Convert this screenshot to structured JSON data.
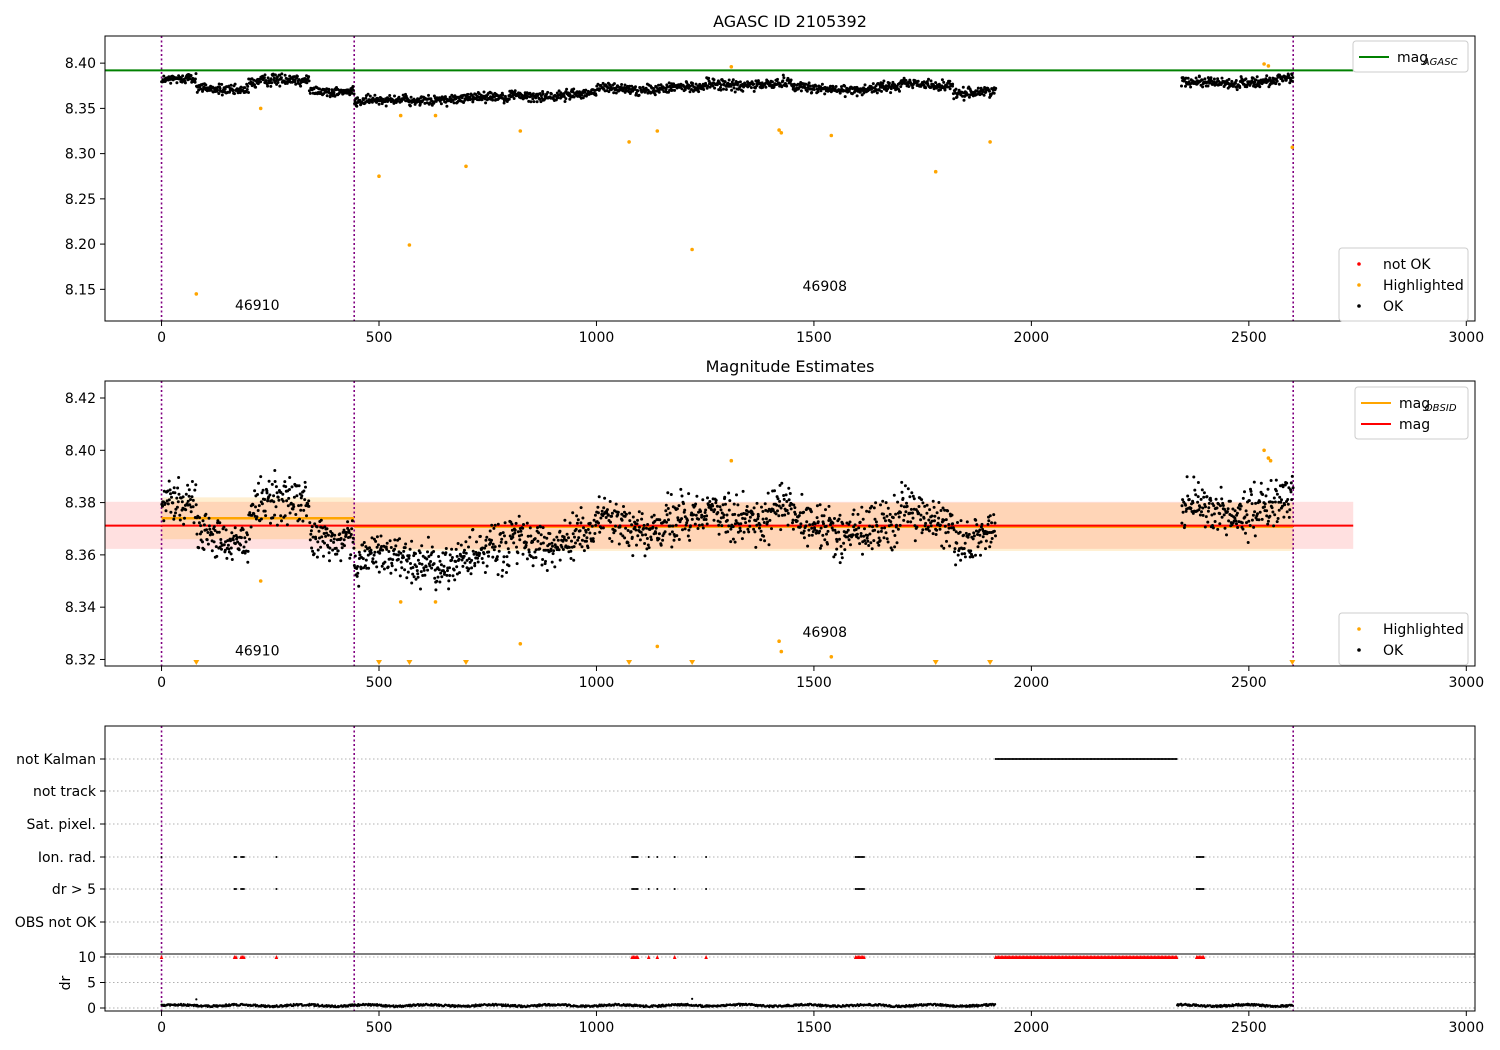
{
  "chart_data": [
    {
      "type": "scatter",
      "title": "AGASC ID 2105392",
      "xlabel": "",
      "ylabel": "",
      "xlim": [
        -130,
        3020
      ],
      "ylim": [
        8.115,
        8.43
      ],
      "xticks": [
        "0",
        "500",
        "1000",
        "1500",
        "2000",
        "2500",
        "3000"
      ],
      "yticks": [
        "8.15",
        "8.20",
        "8.25",
        "8.30",
        "8.35",
        "8.40"
      ],
      "ytick_values": [
        8.15,
        8.2,
        8.25,
        8.3,
        8.35,
        8.4
      ],
      "obsid_boundaries": [
        0,
        443,
        2602
      ],
      "obsid_labels": [
        {
          "text": "46910",
          "x": 220,
          "y": 8.127
        },
        {
          "text": "46908",
          "x": 1525,
          "y": 8.148
        }
      ],
      "reference_line": {
        "name": "mag",
        "subscript": "AGASC",
        "y": 8.392,
        "x_range": [
          -130,
          2740
        ],
        "color": "#008000"
      },
      "ok_segments": [
        {
          "x0": 0,
          "x1": 80,
          "base": 8.381,
          "amp": 0.006
        },
        {
          "x0": 80,
          "x1": 200,
          "base": 8.372,
          "amp": 0.006
        },
        {
          "x0": 200,
          "x1": 340,
          "base": 8.38,
          "amp": 0.007
        },
        {
          "x0": 340,
          "x1": 443,
          "base": 8.37,
          "amp": 0.006
        },
        {
          "x0": 443,
          "x1": 600,
          "base": 8.358,
          "amp": 0.006
        },
        {
          "x0": 600,
          "x1": 800,
          "base": 8.361,
          "amp": 0.006
        },
        {
          "x0": 800,
          "x1": 1000,
          "base": 8.365,
          "amp": 0.006
        },
        {
          "x0": 1000,
          "x1": 1250,
          "base": 8.372,
          "amp": 0.006
        },
        {
          "x0": 1250,
          "x1": 1450,
          "base": 8.377,
          "amp": 0.007
        },
        {
          "x0": 1450,
          "x1": 1700,
          "base": 8.372,
          "amp": 0.006
        },
        {
          "x0": 1700,
          "x1": 1820,
          "base": 8.377,
          "amp": 0.006
        },
        {
          "x0": 1820,
          "x1": 1918,
          "base": 8.367,
          "amp": 0.006
        },
        {
          "x0": 2345,
          "x1": 2480,
          "base": 8.378,
          "amp": 0.006
        },
        {
          "x0": 2480,
          "x1": 2602,
          "base": 8.381,
          "amp": 0.006
        }
      ],
      "highlighted": [
        {
          "x": 80,
          "y": 8.145
        },
        {
          "x": 228,
          "y": 8.35
        },
        {
          "x": 500,
          "y": 8.275
        },
        {
          "x": 550,
          "y": 8.342
        },
        {
          "x": 570,
          "y": 8.199
        },
        {
          "x": 630,
          "y": 8.342
        },
        {
          "x": 700,
          "y": 8.286
        },
        {
          "x": 825,
          "y": 8.325
        },
        {
          "x": 1075,
          "y": 8.313
        },
        {
          "x": 1140,
          "y": 8.325
        },
        {
          "x": 1220,
          "y": 8.194
        },
        {
          "x": 1310,
          "y": 8.396
        },
        {
          "x": 1420,
          "y": 8.326
        },
        {
          "x": 1425,
          "y": 8.323
        },
        {
          "x": 1540,
          "y": 8.32
        },
        {
          "x": 1780,
          "y": 8.28
        },
        {
          "x": 1905,
          "y": 8.313
        },
        {
          "x": 2535,
          "y": 8.399
        },
        {
          "x": 2545,
          "y": 8.397
        },
        {
          "x": 2600,
          "y": 8.307
        }
      ],
      "legend_top": {
        "placement": "top-right",
        "entries": [
          {
            "label": "mag",
            "subscript": "AGASC",
            "color": "#008000"
          }
        ]
      },
      "legend_bottom": {
        "placement": "lower-right",
        "entries": [
          {
            "label": "not OK",
            "color": "#ff0000"
          },
          {
            "label": "Highlighted",
            "color": "#ffa500"
          },
          {
            "label": "OK",
            "color": "#000000"
          }
        ]
      }
    },
    {
      "type": "scatter",
      "title": "Magnitude Estimates",
      "xlabel": "",
      "ylabel": "",
      "xlim": [
        -130,
        3020
      ],
      "ylim": [
        8.3175,
        8.4265
      ],
      "xticks": [
        "0",
        "500",
        "1000",
        "1500",
        "2000",
        "2500",
        "3000"
      ],
      "yticks": [
        "8.32",
        "8.34",
        "8.36",
        "8.38",
        "8.40",
        "8.42"
      ],
      "ytick_values": [
        8.32,
        8.34,
        8.36,
        8.38,
        8.4,
        8.42
      ],
      "obsid_boundaries": [
        0,
        443,
        2602
      ],
      "obsid_labels": [
        {
          "text": "46910",
          "x": 220,
          "y": 8.3215
        },
        {
          "text": "46908",
          "x": 1525,
          "y": 8.3285
        }
      ],
      "mag_line": {
        "name": "mag",
        "y": 8.3712,
        "band": [
          8.3623,
          8.3803
        ],
        "x_range": [
          -130,
          2740
        ],
        "color": "#ff0000"
      },
      "obsid_mags": [
        {
          "x0": 0,
          "x1": 443,
          "y": 8.374,
          "band": [
            8.366,
            8.382
          ]
        },
        {
          "x0": 443,
          "x1": 2602,
          "y": 8.3708,
          "band": [
            8.3615,
            8.38
          ]
        }
      ],
      "ok_segments": [
        {
          "x0": 0,
          "x1": 80,
          "base": 8.379,
          "amp": 0.009
        },
        {
          "x0": 80,
          "x1": 200,
          "base": 8.367,
          "amp": 0.009
        },
        {
          "x0": 200,
          "x1": 340,
          "base": 8.379,
          "amp": 0.01
        },
        {
          "x0": 340,
          "x1": 443,
          "base": 8.368,
          "amp": 0.009
        },
        {
          "x0": 443,
          "x1": 600,
          "base": 8.357,
          "amp": 0.009
        },
        {
          "x0": 600,
          "x1": 800,
          "base": 8.359,
          "amp": 0.01
        },
        {
          "x0": 800,
          "x1": 1000,
          "base": 8.366,
          "amp": 0.009
        },
        {
          "x0": 1000,
          "x1": 1250,
          "base": 8.372,
          "amp": 0.009
        },
        {
          "x0": 1250,
          "x1": 1450,
          "base": 8.376,
          "amp": 0.01
        },
        {
          "x0": 1450,
          "x1": 1700,
          "base": 8.37,
          "amp": 0.01
        },
        {
          "x0": 1700,
          "x1": 1820,
          "base": 8.375,
          "amp": 0.01
        },
        {
          "x0": 1820,
          "x1": 1918,
          "base": 8.366,
          "amp": 0.008
        },
        {
          "x0": 2345,
          "x1": 2480,
          "base": 8.377,
          "amp": 0.009
        },
        {
          "x0": 2480,
          "x1": 2602,
          "base": 8.38,
          "amp": 0.01
        }
      ],
      "highlighted": [
        {
          "x": 228,
          "y": 8.35
        },
        {
          "x": 550,
          "y": 8.342
        },
        {
          "x": 630,
          "y": 8.342
        },
        {
          "x": 825,
          "y": 8.326
        },
        {
          "x": 1140,
          "y": 8.325
        },
        {
          "x": 1310,
          "y": 8.396
        },
        {
          "x": 1420,
          "y": 8.327
        },
        {
          "x": 1425,
          "y": 8.323
        },
        {
          "x": 1540,
          "y": 8.321
        },
        {
          "x": 2535,
          "y": 8.4
        },
        {
          "x": 2545,
          "y": 8.397
        },
        {
          "x": 2550,
          "y": 8.396
        }
      ],
      "out_of_range_markers": [
        80,
        500,
        570,
        700,
        1075,
        1220,
        1780,
        1905,
        2600
      ],
      "legend_top": {
        "placement": "top-right",
        "entries": [
          {
            "label": "mag",
            "subscript": "OBSID",
            "color": "#ffa500"
          },
          {
            "label": "mag",
            "color": "#ff0000"
          }
        ]
      },
      "legend_bottom": {
        "placement": "lower-right",
        "entries": [
          {
            "label": "Highlighted",
            "color": "#ffa500"
          },
          {
            "label": "OK",
            "color": "#000000"
          }
        ]
      }
    },
    {
      "type": "scatter",
      "title": "",
      "xlim": [
        -130,
        3020
      ],
      "xticks": [
        "0",
        "500",
        "1000",
        "1500",
        "2000",
        "2500",
        "3000"
      ],
      "obsid_boundaries": [
        0,
        443,
        2602
      ],
      "flag_rows": [
        "not Kalman",
        "not track",
        "Sat. pixel.",
        "Ion. rad.",
        "dr > 5",
        "OBS not OK"
      ],
      "flag_ranges": {
        "not Kalman": [
          [
            1918,
            2335
          ]
        ],
        "not track": [],
        "Sat. pixel.": [],
        "Ion. rad.": [
          [
            0,
            3
          ],
          [
            168,
            172
          ],
          [
            183,
            190
          ],
          [
            264,
            266
          ],
          [
            1082,
            1096
          ],
          [
            1120,
            1122
          ],
          [
            1140,
            1142
          ],
          [
            1180,
            1182
          ],
          [
            1252,
            1254
          ],
          [
            1596,
            1616
          ],
          [
            2380,
            2396
          ]
        ],
        "dr > 5": [
          [
            0,
            3
          ],
          [
            168,
            172
          ],
          [
            183,
            190
          ],
          [
            264,
            266
          ],
          [
            1082,
            1096
          ],
          [
            1120,
            1122
          ],
          [
            1140,
            1142
          ],
          [
            1180,
            1182
          ],
          [
            1252,
            1254
          ],
          [
            1596,
            1616
          ],
          [
            2380,
            2396
          ]
        ],
        "OBS not OK": []
      },
      "dr": {
        "ylabel": "dr",
        "yticks": [
          "0",
          "5",
          "10"
        ],
        "ytick_values": [
          0,
          5,
          10
        ],
        "ylim": [
          -0.5,
          10.3
        ],
        "clipped_value": 10,
        "clipped_ranges": [
          [
            0,
            3
          ],
          [
            168,
            172
          ],
          [
            183,
            190
          ],
          [
            264,
            266
          ],
          [
            1082,
            1096
          ],
          [
            1120,
            1122
          ],
          [
            1140,
            1142
          ],
          [
            1180,
            1182
          ],
          [
            1252,
            1254
          ],
          [
            1596,
            1616
          ],
          [
            1918,
            2335
          ],
          [
            2380,
            2396
          ]
        ],
        "ok_ranges": [
          [
            0,
            1918
          ],
          [
            2335,
            2602
          ]
        ],
        "base": 0.5,
        "amp": 0.4,
        "outliers": [
          {
            "x": 80,
            "y": 1.7
          },
          {
            "x": 1220,
            "y": 1.8
          }
        ]
      }
    }
  ]
}
